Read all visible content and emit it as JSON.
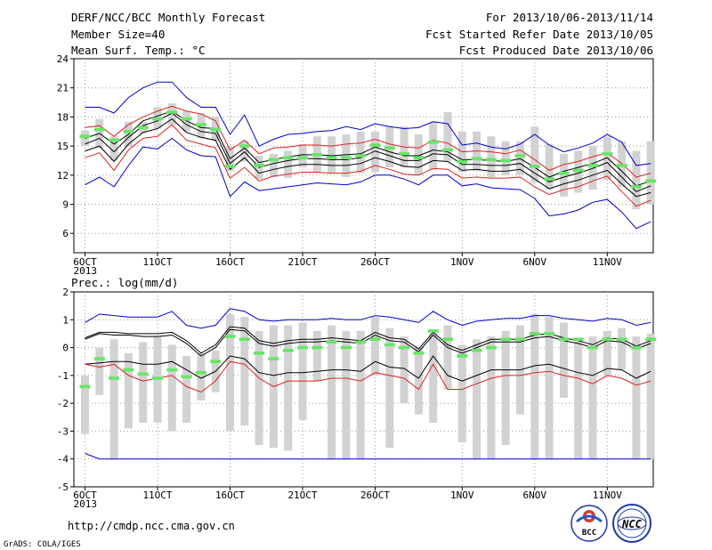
{
  "header": {
    "title": "DERF/NCC/BCC Monthly Forecast",
    "member_size": "Member Size=40",
    "period": "For 2013/10/06-2013/11/14",
    "started": "Fcst Started Refer Date 2013/10/05",
    "produced": "Fcst Produced Date 2013/10/06"
  },
  "footer": {
    "url": "http://cmdp.ncc.cma.gov.cn",
    "credit": "GrADS: COLA/IGES",
    "logo_bcc": "BCC",
    "logo_ncc": "NCC"
  },
  "colors": {
    "box": "#d2d2d2",
    "median": "#66e666",
    "black": "#000000",
    "red": "#dd2222",
    "blue": "#0000cc",
    "grid": "#999999"
  },
  "chart_data": [
    {
      "type": "line",
      "title": "Mean Surf. Temp.: °C",
      "ylim": [
        4,
        24
      ],
      "yticks": [
        6,
        9,
        12,
        15,
        18,
        21,
        24
      ],
      "xticks": [
        {
          "index": 0,
          "label": "6OCT",
          "year": "2013"
        },
        {
          "index": 5,
          "label": "11OCT"
        },
        {
          "index": 10,
          "label": "16OCT"
        },
        {
          "index": 15,
          "label": "21OCT"
        },
        {
          "index": 20,
          "label": "26OCT"
        },
        {
          "index": 26,
          "label": "1NOV"
        },
        {
          "index": 31,
          "label": "6NOV"
        },
        {
          "index": 36,
          "label": "11NOV"
        }
      ],
      "x": [
        "10/06",
        "10/07",
        "10/08",
        "10/09",
        "10/10",
        "10/11",
        "10/12",
        "10/13",
        "10/14",
        "10/15",
        "10/16",
        "10/17",
        "10/18",
        "10/19",
        "10/20",
        "10/21",
        "10/22",
        "10/23",
        "10/24",
        "10/25",
        "10/26",
        "10/27",
        "10/28",
        "10/29",
        "10/30",
        "10/31",
        "11/01",
        "11/02",
        "11/03",
        "11/04",
        "11/05",
        "11/06",
        "11/07",
        "11/08",
        "11/09",
        "11/10",
        "11/11",
        "11/12",
        "11/13",
        "11/14"
      ],
      "box_low": [
        15.0,
        14.8,
        13.5,
        14.9,
        16.3,
        16.8,
        17.2,
        16.5,
        15.8,
        15.5,
        12.4,
        13.4,
        11.6,
        11.8,
        11.7,
        12.8,
        12.3,
        12.2,
        11.8,
        12.2,
        12.3,
        12.8,
        12.8,
        12.0,
        12.5,
        13.4,
        12.3,
        12.4,
        11.8,
        12.0,
        12.0,
        11.2,
        10.5,
        9.8,
        10.2,
        10.5,
        11.5,
        10.8,
        8.5,
        9.0
      ],
      "box_high": [
        16.6,
        17.8,
        16.0,
        17.5,
        17.5,
        19.0,
        19.4,
        18.6,
        18.4,
        18.0,
        15.0,
        15.5,
        14.0,
        14.2,
        14.5,
        15.2,
        16.0,
        16.0,
        16.2,
        16.5,
        16.5,
        17.0,
        17.0,
        16.2,
        17.5,
        18.5,
        16.5,
        16.5,
        16.0,
        15.5,
        15.5,
        17.0,
        15.2,
        14.2,
        14.5,
        15.0,
        16.0,
        15.5,
        14.5,
        15.5
      ],
      "series": [
        {
          "name": "median",
          "values": [
            16.0,
            16.7,
            15.6,
            16.5,
            16.9,
            17.8,
            18.5,
            17.8,
            17.2,
            16.7,
            12.9,
            15.0,
            13.0,
            13.6,
            13.8,
            13.8,
            14.1,
            13.8,
            13.8,
            14.0,
            15.1,
            14.8,
            14.2,
            13.8,
            15.4,
            14.6,
            13.4,
            13.7,
            13.6,
            13.5,
            14.0,
            12.9,
            11.6,
            12.2,
            12.5,
            13.0,
            14.2,
            13.0,
            10.8,
            11.4
          ]
        },
        {
          "name": "upper",
          "values": [
            15.8,
            16.3,
            15.2,
            16.2,
            17.6,
            18.1,
            18.6,
            17.6,
            16.9,
            16.8,
            13.7,
            14.8,
            13.3,
            13.6,
            13.9,
            14.1,
            14.1,
            14.0,
            14.1,
            14.2,
            14.9,
            14.4,
            14.0,
            14.0,
            14.6,
            14.4,
            13.6,
            13.6,
            13.5,
            13.4,
            13.7,
            12.8,
            11.8,
            12.4,
            12.8,
            13.2,
            13.8,
            12.4,
            10.9,
            11.4
          ]
        },
        {
          "name": "mean",
          "values": [
            15.2,
            15.8,
            14.4,
            15.9,
            17.1,
            17.6,
            18.4,
            17.2,
            16.5,
            16.3,
            13.2,
            14.4,
            12.8,
            13.2,
            13.5,
            13.7,
            13.7,
            13.6,
            13.6,
            13.8,
            14.5,
            14.0,
            13.5,
            13.5,
            14.2,
            14.1,
            13.1,
            13.1,
            13.0,
            13.0,
            13.2,
            12.2,
            11.3,
            11.8,
            12.2,
            12.7,
            13.3,
            11.8,
            10.3,
            10.9
          ]
        },
        {
          "name": "lower",
          "values": [
            14.5,
            15.0,
            13.4,
            15.2,
            16.4,
            16.8,
            17.8,
            16.4,
            15.9,
            15.6,
            12.6,
            13.8,
            12.2,
            12.6,
            12.9,
            13.1,
            13.1,
            13.0,
            13.0,
            13.2,
            13.8,
            13.4,
            12.9,
            12.8,
            13.5,
            13.4,
            12.5,
            12.6,
            12.4,
            12.4,
            12.6,
            11.6,
            10.6,
            11.1,
            11.5,
            12.0,
            12.5,
            11.1,
            9.8,
            10.2
          ]
        },
        {
          "name": "upper_band",
          "values": [
            16.9,
            17.1,
            16.0,
            17.2,
            18.0,
            18.6,
            19.1,
            18.6,
            18.3,
            17.6,
            14.6,
            15.6,
            14.2,
            14.8,
            14.9,
            15.1,
            15.1,
            15.0,
            15.2,
            15.3,
            15.7,
            15.2,
            14.9,
            14.8,
            15.6,
            15.3,
            14.4,
            14.5,
            14.4,
            14.2,
            14.6,
            13.6,
            12.5,
            13.1,
            13.4,
            13.9,
            14.3,
            13.2,
            11.8,
            12.2
          ]
        },
        {
          "name": "lower_band",
          "values": [
            13.8,
            14.3,
            12.5,
            14.6,
            15.8,
            16.0,
            17.2,
            15.6,
            15.2,
            14.8,
            11.7,
            12.8,
            11.4,
            11.9,
            12.1,
            12.3,
            12.3,
            12.2,
            12.2,
            12.4,
            13.0,
            12.6,
            12.1,
            12.0,
            12.7,
            12.6,
            11.7,
            11.8,
            11.7,
            11.7,
            11.8,
            10.8,
            10.0,
            10.5,
            10.8,
            11.4,
            11.9,
            10.3,
            8.8,
            9.4
          ]
        },
        {
          "name": "max",
          "values": [
            19.0,
            19.0,
            18.4,
            20.0,
            21.0,
            21.6,
            21.6,
            20.0,
            19.0,
            19.0,
            16.2,
            18.2,
            15.0,
            15.7,
            16.2,
            16.3,
            16.5,
            16.6,
            17.0,
            16.7,
            17.3,
            17.0,
            16.8,
            16.9,
            17.5,
            17.3,
            15.1,
            15.3,
            14.9,
            14.7,
            15.2,
            16.2,
            15.1,
            14.4,
            14.8,
            15.3,
            16.2,
            15.4,
            13.0,
            13.2
          ]
        },
        {
          "name": "min",
          "values": [
            11.0,
            11.8,
            10.8,
            13.0,
            14.9,
            14.7,
            15.8,
            14.6,
            14.0,
            13.9,
            9.8,
            11.3,
            10.4,
            10.6,
            10.8,
            11.0,
            11.2,
            11.1,
            11.0,
            11.3,
            12.0,
            12.0,
            11.6,
            11.0,
            12.0,
            12.0,
            10.9,
            11.1,
            10.7,
            10.6,
            10.5,
            9.6,
            7.8,
            8.0,
            8.4,
            9.2,
            9.5,
            8.2,
            6.5,
            7.2
          ]
        }
      ]
    },
    {
      "type": "line",
      "title": "Prec.: log(mm/d)",
      "ylim": [
        -5,
        2
      ],
      "yticks": [
        -5,
        -4,
        -3,
        -2,
        -1,
        0,
        1,
        2
      ],
      "xticks": [
        {
          "index": 0,
          "label": "6OCT",
          "year": "2013"
        },
        {
          "index": 5,
          "label": "11OCT"
        },
        {
          "index": 10,
          "label": "16OCT"
        },
        {
          "index": 15,
          "label": "21OCT"
        },
        {
          "index": 20,
          "label": "26OCT"
        },
        {
          "index": 26,
          "label": "1NOV"
        },
        {
          "index": 31,
          "label": "6NOV"
        },
        {
          "index": 36,
          "label": "11NOV"
        }
      ],
      "x": [
        "10/06",
        "10/07",
        "10/08",
        "10/09",
        "10/10",
        "10/11",
        "10/12",
        "10/13",
        "10/14",
        "10/15",
        "10/16",
        "10/17",
        "10/18",
        "10/19",
        "10/20",
        "10/21",
        "10/22",
        "10/23",
        "10/24",
        "10/25",
        "10/26",
        "10/27",
        "10/28",
        "10/29",
        "10/30",
        "10/31",
        "11/01",
        "11/02",
        "11/03",
        "11/04",
        "11/05",
        "11/06",
        "11/07",
        "11/08",
        "11/09",
        "11/10",
        "11/11",
        "11/12",
        "11/13",
        "11/14"
      ],
      "box_low": [
        -3.1,
        -1.7,
        -4.0,
        -2.9,
        -2.7,
        -2.7,
        -3.0,
        -2.7,
        -1.9,
        -1.6,
        -3.0,
        -2.8,
        -3.5,
        -3.6,
        -3.7,
        -2.6,
        -1.2,
        -4.0,
        -4.0,
        -4.0,
        -1.0,
        -3.6,
        -2.0,
        -2.4,
        -2.7,
        -1.5,
        -3.4,
        -4.0,
        -4.0,
        -3.5,
        -2.4,
        -4.0,
        -4.0,
        -1.8,
        -4.0,
        -4.0,
        -1.0,
        -0.8,
        -4.0,
        -4.0
      ],
      "box_high": [
        -1.0,
        0.0,
        0.3,
        -0.2,
        0.2,
        0.4,
        0.1,
        -0.3,
        -0.2,
        -0.1,
        1.2,
        1.1,
        0.6,
        0.8,
        0.8,
        0.9,
        0.6,
        0.8,
        0.6,
        0.6,
        1.1,
        0.7,
        0.4,
        0.0,
        0.6,
        0.8,
        0.1,
        0.3,
        0.4,
        0.6,
        0.8,
        1.2,
        1.1,
        0.9,
        0.3,
        0.4,
        0.6,
        0.7,
        0.4,
        0.5
      ],
      "series": [
        {
          "name": "median",
          "values": [
            -1.4,
            -0.4,
            -1.1,
            -0.8,
            -0.95,
            -1.1,
            -0.8,
            -1.05,
            -0.9,
            -0.5,
            0.4,
            0.3,
            -0.2,
            -0.4,
            -0.1,
            0.0,
            0.0,
            0.2,
            0.0,
            0.2,
            0.3,
            0.1,
            0.0,
            -0.2,
            0.6,
            0.3,
            -0.3,
            -0.1,
            0.0,
            0.3,
            0.3,
            0.5,
            0.5,
            0.3,
            0.3,
            0.0,
            0.3,
            0.3,
            0.0,
            0.3
          ]
        },
        {
          "name": "upper",
          "values": [
            0.35,
            0.55,
            0.55,
            0.5,
            0.5,
            0.5,
            0.55,
            0.25,
            -0.2,
            0.1,
            0.75,
            0.7,
            0.25,
            0.15,
            0.25,
            0.3,
            0.3,
            0.35,
            0.3,
            0.25,
            0.55,
            0.35,
            0.3,
            -0.05,
            0.55,
            0.1,
            -0.1,
            0.1,
            0.3,
            0.3,
            0.3,
            0.45,
            0.5,
            0.35,
            0.25,
            0.1,
            0.35,
            0.3,
            0.05,
            0.25
          ]
        },
        {
          "name": "mean",
          "values": [
            0.3,
            0.5,
            0.45,
            0.45,
            0.4,
            0.4,
            0.45,
            0.15,
            -0.3,
            0.0,
            0.65,
            0.6,
            0.15,
            0.05,
            0.15,
            0.2,
            0.2,
            0.25,
            0.2,
            0.15,
            0.45,
            0.25,
            0.2,
            -0.15,
            0.45,
            0.0,
            -0.2,
            0.0,
            0.2,
            0.2,
            0.2,
            0.35,
            0.4,
            0.25,
            0.15,
            0.0,
            0.25,
            0.2,
            -0.05,
            0.15
          ]
        },
        {
          "name": "lower",
          "values": [
            -0.6,
            -0.55,
            -0.5,
            -0.5,
            -0.6,
            -0.6,
            -0.5,
            -0.8,
            -1.1,
            -0.85,
            -0.3,
            -0.4,
            -0.9,
            -1.0,
            -0.9,
            -0.9,
            -0.85,
            -0.8,
            -0.8,
            -0.85,
            -0.5,
            -0.7,
            -0.75,
            -1.1,
            -0.3,
            -1.0,
            -1.2,
            -1.0,
            -0.8,
            -0.8,
            -0.8,
            -0.65,
            -0.6,
            -0.75,
            -0.9,
            -1.0,
            -0.75,
            -0.8,
            -1.1,
            -0.85
          ]
        },
        {
          "name": "lower_band",
          "values": [
            -0.6,
            -0.7,
            -0.6,
            -1.0,
            -1.2,
            -1.1,
            -1.0,
            -1.4,
            -1.6,
            -1.2,
            -0.5,
            -0.6,
            -1.1,
            -1.4,
            -1.2,
            -1.2,
            -1.2,
            -1.1,
            -1.1,
            -1.2,
            -0.9,
            -1.0,
            -1.1,
            -1.5,
            -0.6,
            -1.5,
            -1.5,
            -1.3,
            -1.1,
            -1.0,
            -1.0,
            -0.9,
            -0.85,
            -1.0,
            -1.1,
            -1.3,
            -1.0,
            -1.1,
            -1.35,
            -1.2
          ]
        },
        {
          "name": "max",
          "values": [
            0.9,
            1.2,
            1.15,
            1.1,
            1.1,
            1.1,
            1.3,
            0.8,
            0.7,
            0.8,
            1.4,
            1.3,
            1.0,
            0.95,
            1.0,
            1.0,
            1.0,
            1.05,
            1.0,
            1.0,
            1.15,
            1.1,
            1.0,
            0.9,
            1.3,
            1.0,
            0.8,
            0.95,
            1.0,
            1.05,
            1.05,
            1.15,
            1.15,
            1.05,
            1.0,
            0.95,
            1.05,
            1.0,
            0.8,
            0.9
          ]
        },
        {
          "name": "min",
          "values": [
            -3.8,
            -4.0,
            -4.0,
            -4.0,
            -4.0,
            -4.0,
            -4.0,
            -4.0,
            -4.0,
            -4.0,
            -4.0,
            -4.0,
            -4.0,
            -4.0,
            -4.0,
            -4.0,
            -4.0,
            -4.0,
            -4.0,
            -4.0,
            -4.0,
            -4.0,
            -4.0,
            -4.0,
            -4.0,
            -4.0,
            -4.0,
            -4.0,
            -4.0,
            -4.0,
            -4.0,
            -4.0,
            -4.0,
            -4.0,
            -4.0,
            -4.0,
            -4.0,
            -4.0,
            -4.0,
            -4.0
          ]
        }
      ]
    }
  ]
}
